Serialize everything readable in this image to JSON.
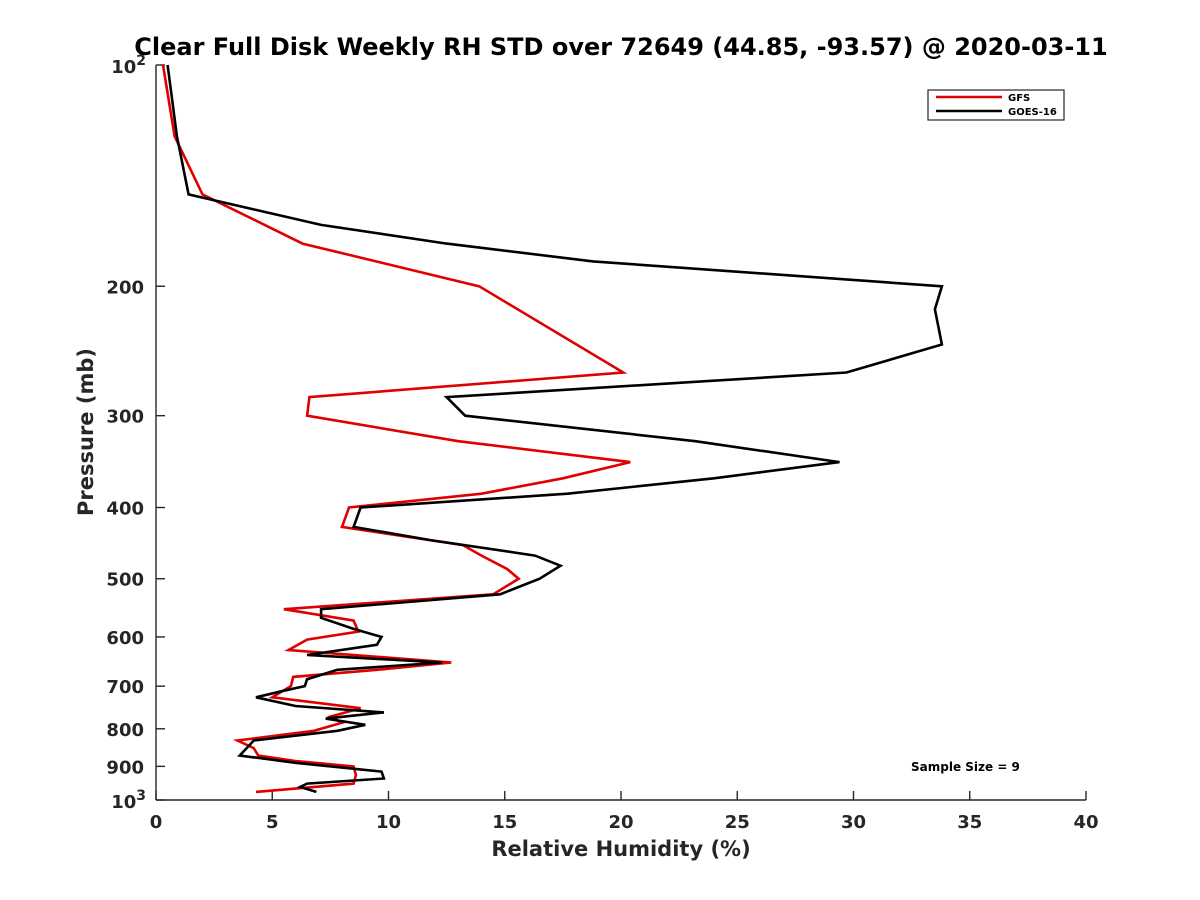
{
  "chart_data": {
    "type": "line",
    "title": "Clear Full Disk Weekly RH STD over 72649 (44.85, -93.57) @ 2020-03-11",
    "xlabel": "Relative Humidity (%)",
    "ylabel": "Pressure (mb)",
    "xlim": [
      0,
      40
    ],
    "ylim": [
      100,
      1000
    ],
    "y_scale": "log",
    "y_reversed": true,
    "x_ticks": [
      0,
      5,
      10,
      15,
      20,
      25,
      30,
      35,
      40
    ],
    "y_ticks": [
      {
        "value": 100,
        "base": "10",
        "exp": "2"
      },
      {
        "value": 200,
        "label": "200"
      },
      {
        "value": 300,
        "label": "300"
      },
      {
        "value": 400,
        "label": "400"
      },
      {
        "value": 500,
        "label": "500"
      },
      {
        "value": 600,
        "label": "600"
      },
      {
        "value": 700,
        "label": "700"
      },
      {
        "value": 800,
        "label": "800"
      },
      {
        "value": 900,
        "label": "900"
      },
      {
        "value": 1000,
        "base": "10",
        "exp": "3"
      }
    ],
    "legend_position": "top-right",
    "annotation": "Sample Size = 9",
    "series": [
      {
        "name": "GFS",
        "color": "#e00000",
        "points": [
          [
            0.3,
            100
          ],
          [
            0.8,
            125
          ],
          [
            2.0,
            150
          ],
          [
            6.3,
            175
          ],
          [
            13.9,
            200
          ],
          [
            20.1,
            262
          ],
          [
            6.6,
            283
          ],
          [
            6.5,
            300
          ],
          [
            13.0,
            325
          ],
          [
            20.4,
            347
          ],
          [
            17.5,
            365
          ],
          [
            14.0,
            383
          ],
          [
            8.3,
            400
          ],
          [
            8.0,
            425
          ],
          [
            13.2,
            450
          ],
          [
            14.0,
            465
          ],
          [
            15.1,
            485
          ],
          [
            15.6,
            500
          ],
          [
            14.5,
            525
          ],
          [
            5.5,
            550
          ],
          [
            8.5,
            570
          ],
          [
            8.7,
            590
          ],
          [
            6.5,
            605
          ],
          [
            5.7,
            625
          ],
          [
            12.7,
            650
          ],
          [
            9.5,
            665
          ],
          [
            5.9,
            680
          ],
          [
            5.8,
            700
          ],
          [
            5.0,
            725
          ],
          [
            8.8,
            750
          ],
          [
            7.5,
            770
          ],
          [
            8.0,
            785
          ],
          [
            6.8,
            805
          ],
          [
            3.5,
            830
          ],
          [
            4.2,
            850
          ],
          [
            4.4,
            870
          ],
          [
            6.0,
            885
          ],
          [
            8.5,
            900
          ],
          [
            8.6,
            925
          ],
          [
            8.5,
            950
          ],
          [
            4.3,
            975
          ]
        ]
      },
      {
        "name": "GOES-16",
        "color": "#000000",
        "points": [
          [
            0.5,
            100
          ],
          [
            0.9,
            125
          ],
          [
            1.4,
            150
          ],
          [
            7.1,
            165
          ],
          [
            12.5,
            175
          ],
          [
            18.8,
            185
          ],
          [
            33.8,
            200
          ],
          [
            33.5,
            215
          ],
          [
            33.8,
            240
          ],
          [
            29.7,
            262
          ],
          [
            12.5,
            283
          ],
          [
            13.3,
            300
          ],
          [
            23.2,
            325
          ],
          [
            29.4,
            347
          ],
          [
            24.0,
            365
          ],
          [
            17.7,
            383
          ],
          [
            8.8,
            400
          ],
          [
            8.5,
            425
          ],
          [
            11.8,
            443
          ],
          [
            16.3,
            465
          ],
          [
            17.4,
            480
          ],
          [
            16.5,
            500
          ],
          [
            14.8,
            525
          ],
          [
            7.1,
            550
          ],
          [
            7.1,
            565
          ],
          [
            8.5,
            585
          ],
          [
            9.7,
            600
          ],
          [
            9.5,
            615
          ],
          [
            6.5,
            635
          ],
          [
            12.3,
            650
          ],
          [
            7.8,
            665
          ],
          [
            6.5,
            685
          ],
          [
            6.4,
            700
          ],
          [
            5.5,
            710
          ],
          [
            4.3,
            725
          ],
          [
            6.0,
            745
          ],
          [
            9.8,
            760
          ],
          [
            7.3,
            775
          ],
          [
            9.0,
            790
          ],
          [
            7.8,
            805
          ],
          [
            4.2,
            830
          ],
          [
            3.9,
            850
          ],
          [
            3.6,
            870
          ],
          [
            6.0,
            890
          ],
          [
            9.7,
            915
          ],
          [
            9.8,
            935
          ],
          [
            6.5,
            950
          ],
          [
            6.2,
            960
          ],
          [
            6.9,
            975
          ]
        ]
      }
    ]
  }
}
